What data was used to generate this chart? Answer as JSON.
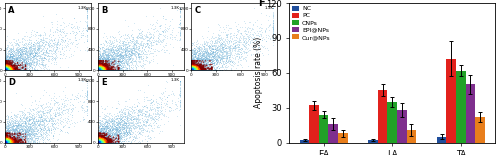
{
  "title_label": "F",
  "subplot_labels": [
    "A",
    "B",
    "C",
    "D",
    "E"
  ],
  "groups": [
    "EA",
    "LA",
    "TA"
  ],
  "series": [
    "NC",
    "PC",
    "CNPs",
    "EPI@NPs",
    "Cur@NPs"
  ],
  "colors": [
    "#1f4e9c",
    "#e2211c",
    "#21a127",
    "#7f2f8e",
    "#e87e1c"
  ],
  "values": [
    [
      2.0,
      2.0,
      5.0
    ],
    [
      32.0,
      45.0,
      72.0
    ],
    [
      24.0,
      35.0,
      62.0
    ],
    [
      16.0,
      28.0,
      50.0
    ],
    [
      8.0,
      11.0,
      22.0
    ]
  ],
  "errors": [
    [
      1.0,
      1.0,
      2.0
    ],
    [
      4.0,
      5.0,
      15.0
    ],
    [
      3.0,
      4.0,
      5.0
    ],
    [
      5.0,
      6.0,
      8.0
    ],
    [
      3.0,
      5.0,
      4.0
    ]
  ],
  "ylabel": "Apoptosis rate (%)",
  "ylim": [
    0,
    120
  ],
  "yticks": [
    0,
    30,
    60,
    90,
    120
  ],
  "bar_width": 0.14
}
